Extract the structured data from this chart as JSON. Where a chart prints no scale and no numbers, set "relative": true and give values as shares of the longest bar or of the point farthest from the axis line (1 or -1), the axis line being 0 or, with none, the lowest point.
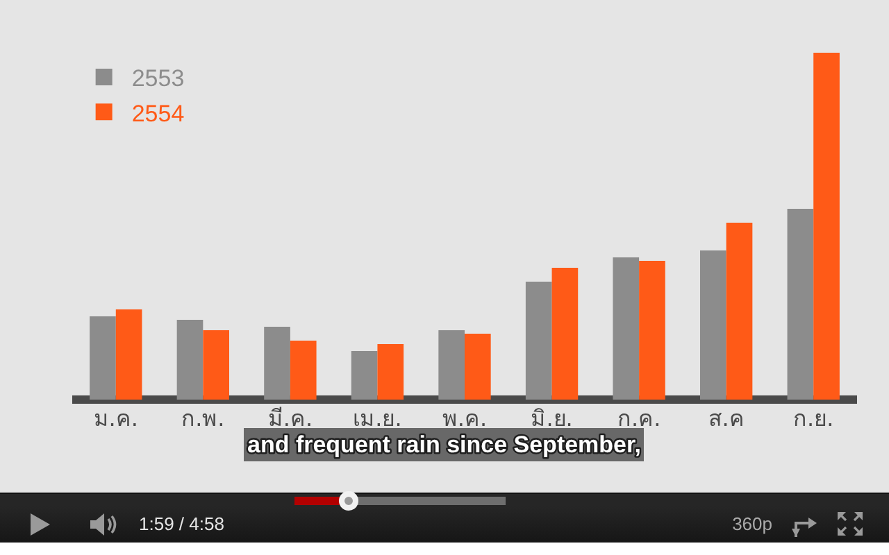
{
  "chart_data": {
    "type": "bar",
    "relative": true,
    "categories": [
      "ม.ค.",
      "ก.พ.",
      "มี.ค.",
      "เม.ย.",
      "พ.ค.",
      "มิ.ย.",
      "ก.ค.",
      "ส.ค",
      "ก.ย."
    ],
    "series": [
      {
        "name": "2553",
        "color": "#8c8c8c",
        "values": [
          0.24,
          0.23,
          0.21,
          0.14,
          0.2,
          0.34,
          0.41,
          0.43,
          0.55
        ]
      },
      {
        "name": "2554",
        "color": "#ff5a17",
        "values": [
          0.26,
          0.2,
          0.17,
          0.16,
          0.19,
          0.38,
          0.4,
          0.51,
          1
        ]
      }
    ],
    "legend": "top left",
    "annotations": [
      "and frequent rain since September,",
      "1:59 / 4:58",
      "360p"
    ]
  }
}
